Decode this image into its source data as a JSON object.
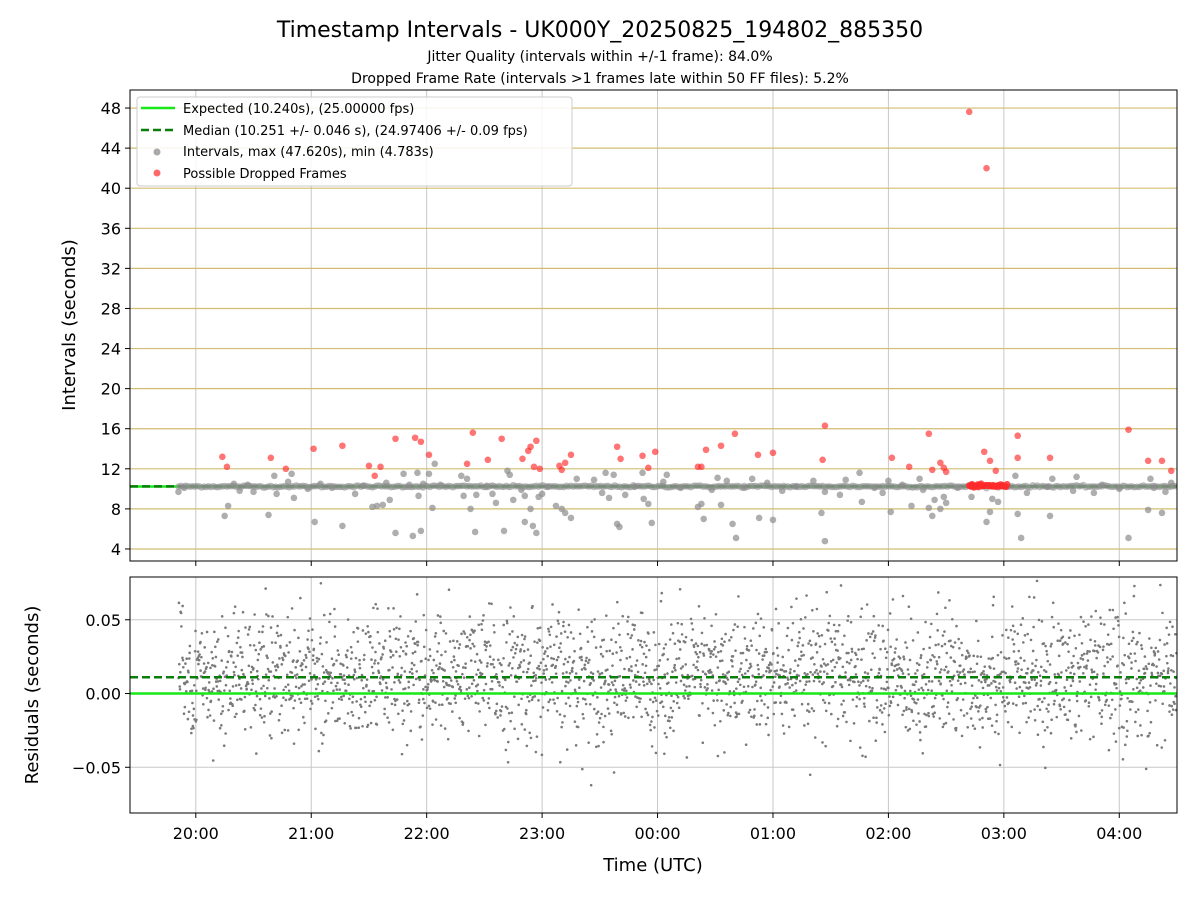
{
  "chart_data": [
    {
      "type": "scatter",
      "title": "Timestamp Intervals - UK000Y_20250825_194802_885350",
      "subtitles": [
        "Jitter Quality (intervals within +/-1 frame): 84.0%",
        "Dropped Frame Rate (intervals >1 frames late within 50 FF files): 5.2%"
      ],
      "ylabel": "Intervals (seconds)",
      "ylim": [
        2.8,
        49.8
      ],
      "y_ticks": [
        "4",
        "8",
        "12",
        "16",
        "20",
        "24",
        "28",
        "32",
        "36",
        "40",
        "44",
        "48"
      ],
      "y_tick_values": [
        4,
        8,
        12,
        16,
        20,
        24,
        28,
        32,
        36,
        40,
        44,
        48
      ],
      "x_range_hours": [
        19.43,
        28.5
      ],
      "x_ticks_hours": [
        20,
        21,
        22,
        23,
        24,
        25,
        26,
        27,
        28
      ],
      "grid": true,
      "legend_position": "top-left",
      "expected_value": 10.24,
      "median_value": 10.251,
      "colors": {
        "expected": "#17e817",
        "median": "#0a7d0a",
        "intervals": "#8c8c8c",
        "dropped": "#ff2a2a",
        "hgrid": "#d2bd72",
        "vgrid": "#c8c8c8"
      },
      "legend": [
        "Expected (10.240s), (25.00000 fps)",
        "Median (10.251 +/- 0.046 s), (24.97406 +/- 0.09 fps)",
        "Intervals, max (47.620s), min (4.783s)",
        "Possible Dropped Frames"
      ],
      "dropped_points": [
        [
          20.23,
          13.2
        ],
        [
          20.27,
          12.2
        ],
        [
          20.65,
          13.1
        ],
        [
          20.78,
          12.0
        ],
        [
          21.02,
          14.0
        ],
        [
          21.27,
          14.3
        ],
        [
          21.5,
          12.3
        ],
        [
          21.55,
          11.3
        ],
        [
          21.6,
          12.2
        ],
        [
          21.73,
          15.0
        ],
        [
          21.9,
          15.1
        ],
        [
          21.95,
          14.7
        ],
        [
          22.02,
          13.4
        ],
        [
          22.35,
          12.5
        ],
        [
          22.4,
          15.6
        ],
        [
          22.53,
          12.9
        ],
        [
          22.65,
          15.0
        ],
        [
          22.83,
          13.0
        ],
        [
          22.88,
          13.8
        ],
        [
          22.9,
          14.2
        ],
        [
          22.93,
          12.2
        ],
        [
          22.95,
          14.8
        ],
        [
          22.98,
          12.0
        ],
        [
          23.15,
          12.3
        ],
        [
          23.17,
          11.9
        ],
        [
          23.2,
          12.6
        ],
        [
          23.25,
          13.4
        ],
        [
          23.65,
          14.2
        ],
        [
          23.68,
          13.0
        ],
        [
          23.87,
          13.3
        ],
        [
          23.92,
          12.1
        ],
        [
          23.98,
          13.7
        ],
        [
          24.35,
          12.2
        ],
        [
          24.38,
          12.2
        ],
        [
          24.42,
          13.9
        ],
        [
          24.55,
          14.3
        ],
        [
          24.67,
          15.5
        ],
        [
          24.87,
          13.4
        ],
        [
          25.0,
          13.6
        ],
        [
          25.43,
          12.9
        ],
        [
          25.45,
          16.3
        ],
        [
          26.03,
          13.1
        ],
        [
          26.18,
          12.2
        ],
        [
          26.35,
          15.5
        ],
        [
          26.38,
          11.9
        ],
        [
          26.45,
          12.6
        ],
        [
          26.48,
          12.1
        ],
        [
          26.5,
          11.7
        ],
        [
          26.7,
          47.62
        ],
        [
          26.85,
          42.0
        ],
        [
          26.83,
          13.7
        ],
        [
          26.88,
          12.8
        ],
        [
          26.93,
          11.8
        ],
        [
          27.12,
          15.3
        ],
        [
          27.12,
          13.1
        ],
        [
          27.4,
          13.1
        ],
        [
          28.08,
          15.9
        ],
        [
          28.25,
          12.8
        ],
        [
          28.37,
          12.8
        ],
        [
          28.45,
          11.8
        ]
      ],
      "dropped_cluster_hours": [
        26.7,
        27.03
      ],
      "dropped_cluster_value": 10.3,
      "gray_points": [
        [
          19.85,
          9.7
        ],
        [
          19.9,
          10.1
        ],
        [
          20.25,
          7.3
        ],
        [
          20.28,
          8.3
        ],
        [
          20.33,
          10.5
        ],
        [
          20.38,
          9.8
        ],
        [
          20.45,
          10.4
        ],
        [
          20.5,
          9.7
        ],
        [
          20.63,
          7.4
        ],
        [
          20.68,
          11.3
        ],
        [
          20.7,
          9.5
        ],
        [
          20.8,
          10.7
        ],
        [
          20.83,
          11.5
        ],
        [
          20.85,
          9.1
        ],
        [
          20.97,
          10.0
        ],
        [
          21.03,
          6.7
        ],
        [
          21.08,
          10.5
        ],
        [
          21.18,
          10.1
        ],
        [
          21.27,
          6.3
        ],
        [
          21.38,
          9.5
        ],
        [
          21.45,
          10.3
        ],
        [
          21.53,
          8.2
        ],
        [
          21.57,
          8.3
        ],
        [
          21.62,
          8.4
        ],
        [
          21.65,
          10.6
        ],
        [
          21.68,
          8.9
        ],
        [
          21.73,
          5.6
        ],
        [
          21.8,
          11.5
        ],
        [
          21.85,
          10.4
        ],
        [
          21.88,
          5.3
        ],
        [
          21.92,
          11.6
        ],
        [
          21.93,
          9.3
        ],
        [
          21.95,
          5.8
        ],
        [
          21.97,
          10.5
        ],
        [
          22.02,
          11.5
        ],
        [
          22.05,
          8.1
        ],
        [
          22.07,
          12.5
        ],
        [
          22.12,
          10.4
        ],
        [
          22.3,
          11.3
        ],
        [
          22.32,
          9.3
        ],
        [
          22.35,
          11.0
        ],
        [
          22.38,
          8.0
        ],
        [
          22.42,
          5.7
        ],
        [
          22.43,
          9.4
        ],
        [
          22.52,
          10.3
        ],
        [
          22.57,
          9.5
        ],
        [
          22.6,
          8.6
        ],
        [
          22.67,
          5.8
        ],
        [
          22.7,
          11.8
        ],
        [
          22.72,
          11.4
        ],
        [
          22.75,
          8.9
        ],
        [
          22.82,
          9.9
        ],
        [
          22.85,
          9.3
        ],
        [
          22.85,
          6.7
        ],
        [
          22.9,
          8.0
        ],
        [
          22.92,
          6.3
        ],
        [
          22.95,
          5.6
        ],
        [
          22.97,
          9.2
        ],
        [
          23.0,
          9.5
        ],
        [
          23.05,
          10.2
        ],
        [
          23.12,
          8.3
        ],
        [
          23.17,
          8.0
        ],
        [
          23.2,
          7.6
        ],
        [
          23.25,
          7.1
        ],
        [
          23.3,
          11.0
        ],
        [
          23.45,
          10.9
        ],
        [
          23.52,
          9.6
        ],
        [
          23.55,
          11.6
        ],
        [
          23.58,
          9.1
        ],
        [
          23.62,
          11.4
        ],
        [
          23.65,
          6.5
        ],
        [
          23.67,
          6.2
        ],
        [
          23.72,
          9.4
        ],
        [
          23.8,
          10.2
        ],
        [
          23.87,
          11.6
        ],
        [
          23.88,
          9.0
        ],
        [
          23.92,
          8.5
        ],
        [
          23.95,
          6.6
        ],
        [
          24.05,
          10.7
        ],
        [
          24.08,
          11.4
        ],
        [
          24.2,
          10.1
        ],
        [
          24.35,
          8.2
        ],
        [
          24.38,
          8.5
        ],
        [
          24.4,
          7.0
        ],
        [
          24.47,
          9.9
        ],
        [
          24.52,
          11.1
        ],
        [
          24.55,
          8.4
        ],
        [
          24.6,
          10.8
        ],
        [
          24.65,
          6.5
        ],
        [
          24.68,
          5.1
        ],
        [
          24.75,
          10.1
        ],
        [
          24.82,
          11.0
        ],
        [
          24.88,
          7.1
        ],
        [
          24.95,
          10.6
        ],
        [
          25.0,
          6.9
        ],
        [
          25.08,
          9.8
        ],
        [
          25.2,
          10.2
        ],
        [
          25.35,
          10.8
        ],
        [
          25.42,
          7.6
        ],
        [
          25.45,
          4.783
        ],
        [
          25.45,
          9.7
        ],
        [
          25.58,
          9.4
        ],
        [
          25.63,
          10.9
        ],
        [
          25.75,
          11.6
        ],
        [
          25.77,
          8.7
        ],
        [
          25.88,
          10.1
        ],
        [
          25.95,
          9.6
        ],
        [
          26.0,
          10.8
        ],
        [
          26.02,
          7.7
        ],
        [
          26.12,
          10.4
        ],
        [
          26.2,
          8.3
        ],
        [
          26.27,
          11.0
        ],
        [
          26.3,
          9.9
        ],
        [
          26.35,
          8.1
        ],
        [
          26.38,
          7.3
        ],
        [
          26.4,
          8.9
        ],
        [
          26.45,
          8.0
        ],
        [
          26.48,
          9.2
        ],
        [
          26.5,
          8.6
        ],
        [
          26.6,
          10.1
        ],
        [
          26.72,
          9.2
        ],
        [
          26.85,
          6.7
        ],
        [
          26.88,
          7.7
        ],
        [
          26.9,
          9.0
        ],
        [
          26.95,
          8.7
        ],
        [
          27.1,
          11.3
        ],
        [
          27.12,
          7.5
        ],
        [
          27.15,
          5.1
        ],
        [
          27.2,
          9.6
        ],
        [
          27.38,
          10.2
        ],
        [
          27.4,
          7.3
        ],
        [
          27.42,
          11.0
        ],
        [
          27.6,
          9.8
        ],
        [
          27.63,
          11.2
        ],
        [
          27.78,
          9.6
        ],
        [
          27.85,
          10.4
        ],
        [
          28.0,
          10.0
        ],
        [
          28.08,
          5.1
        ],
        [
          28.25,
          7.9
        ],
        [
          28.27,
          11.0
        ],
        [
          28.3,
          10.1
        ],
        [
          28.37,
          7.6
        ],
        [
          28.4,
          9.7
        ],
        [
          28.45,
          10.6
        ]
      ]
    },
    {
      "type": "scatter",
      "ylabel": "Residuals (seconds)",
      "xlabel": "Time (UTC)",
      "ylim": [
        -0.081,
        0.079
      ],
      "y_ticks": [
        "−0.05",
        "0.00",
        "0.05"
      ],
      "y_tick_values": [
        -0.05,
        0.0,
        0.05
      ],
      "x_ticks": [
        "20:00",
        "21:00",
        "22:00",
        "23:00",
        "00:00",
        "01:00",
        "02:00",
        "03:00",
        "04:00"
      ],
      "x_tick_hours": [
        20,
        21,
        22,
        23,
        24,
        25,
        26,
        27,
        28
      ],
      "x_range_hours": [
        19.43,
        28.5
      ],
      "grid": true,
      "zero_line": 0.0,
      "median_offset": 0.011,
      "residuals": {
        "start_hour": 19.85,
        "end_hour": 28.5,
        "count": 2600,
        "mean": 0.011,
        "std": 0.022,
        "min": -0.07,
        "max": 0.079,
        "color": "#7a7a7a"
      }
    }
  ]
}
